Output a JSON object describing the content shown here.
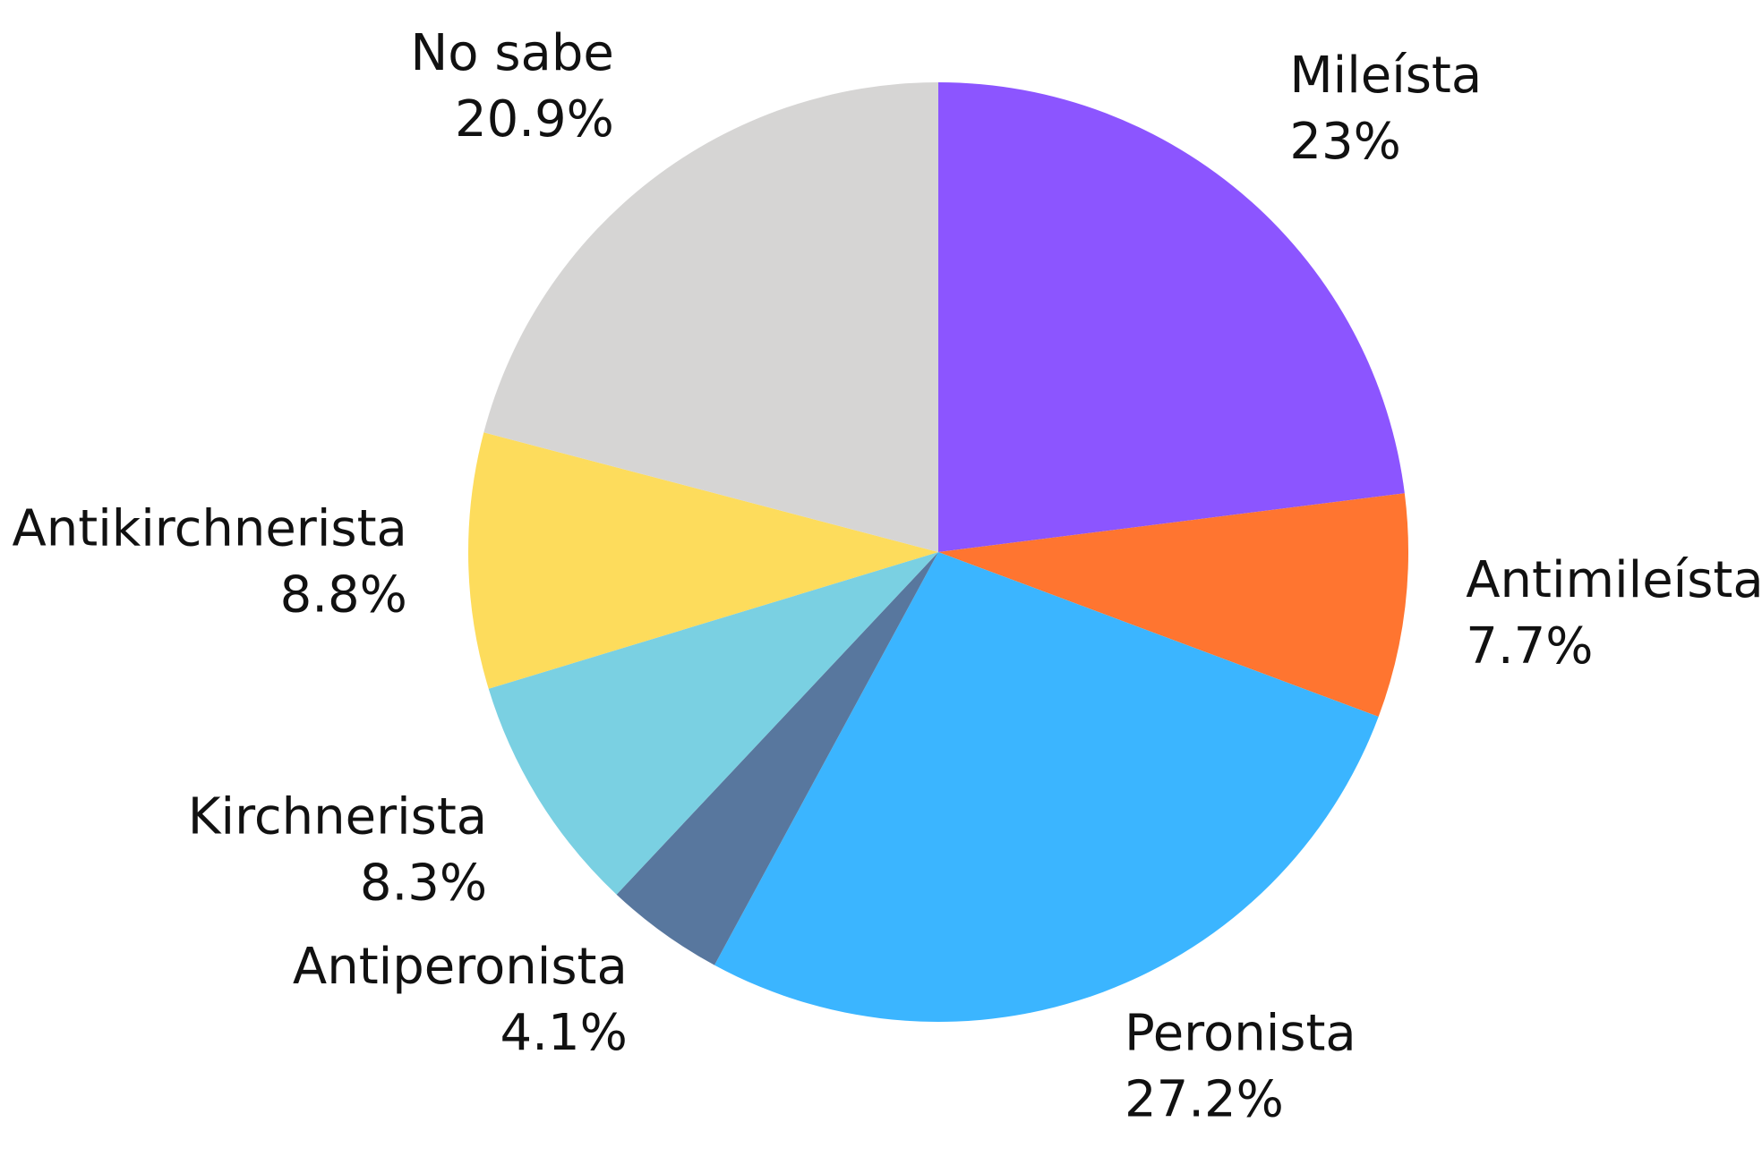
{
  "chart_data": {
    "type": "pie",
    "categories": [
      "Mileísta",
      "Antimileísta",
      "Peronista",
      "Antiperonista",
      "Kirchnerista",
      "Antikirchnerista",
      "No sabe"
    ],
    "values": [
      23,
      7.7,
      27.2,
      4.1,
      8.3,
      8.8,
      20.9
    ],
    "value_labels": [
      "23%",
      "7.7%",
      "27.2%",
      "4.1%",
      "8.3%",
      "8.8%",
      "20.9%"
    ],
    "colors": [
      "#8c55ff",
      "#ff7530",
      "#3bb5ff",
      "#58779e",
      "#7ad0e2",
      "#fddc5c",
      "#d6d5d4"
    ]
  }
}
